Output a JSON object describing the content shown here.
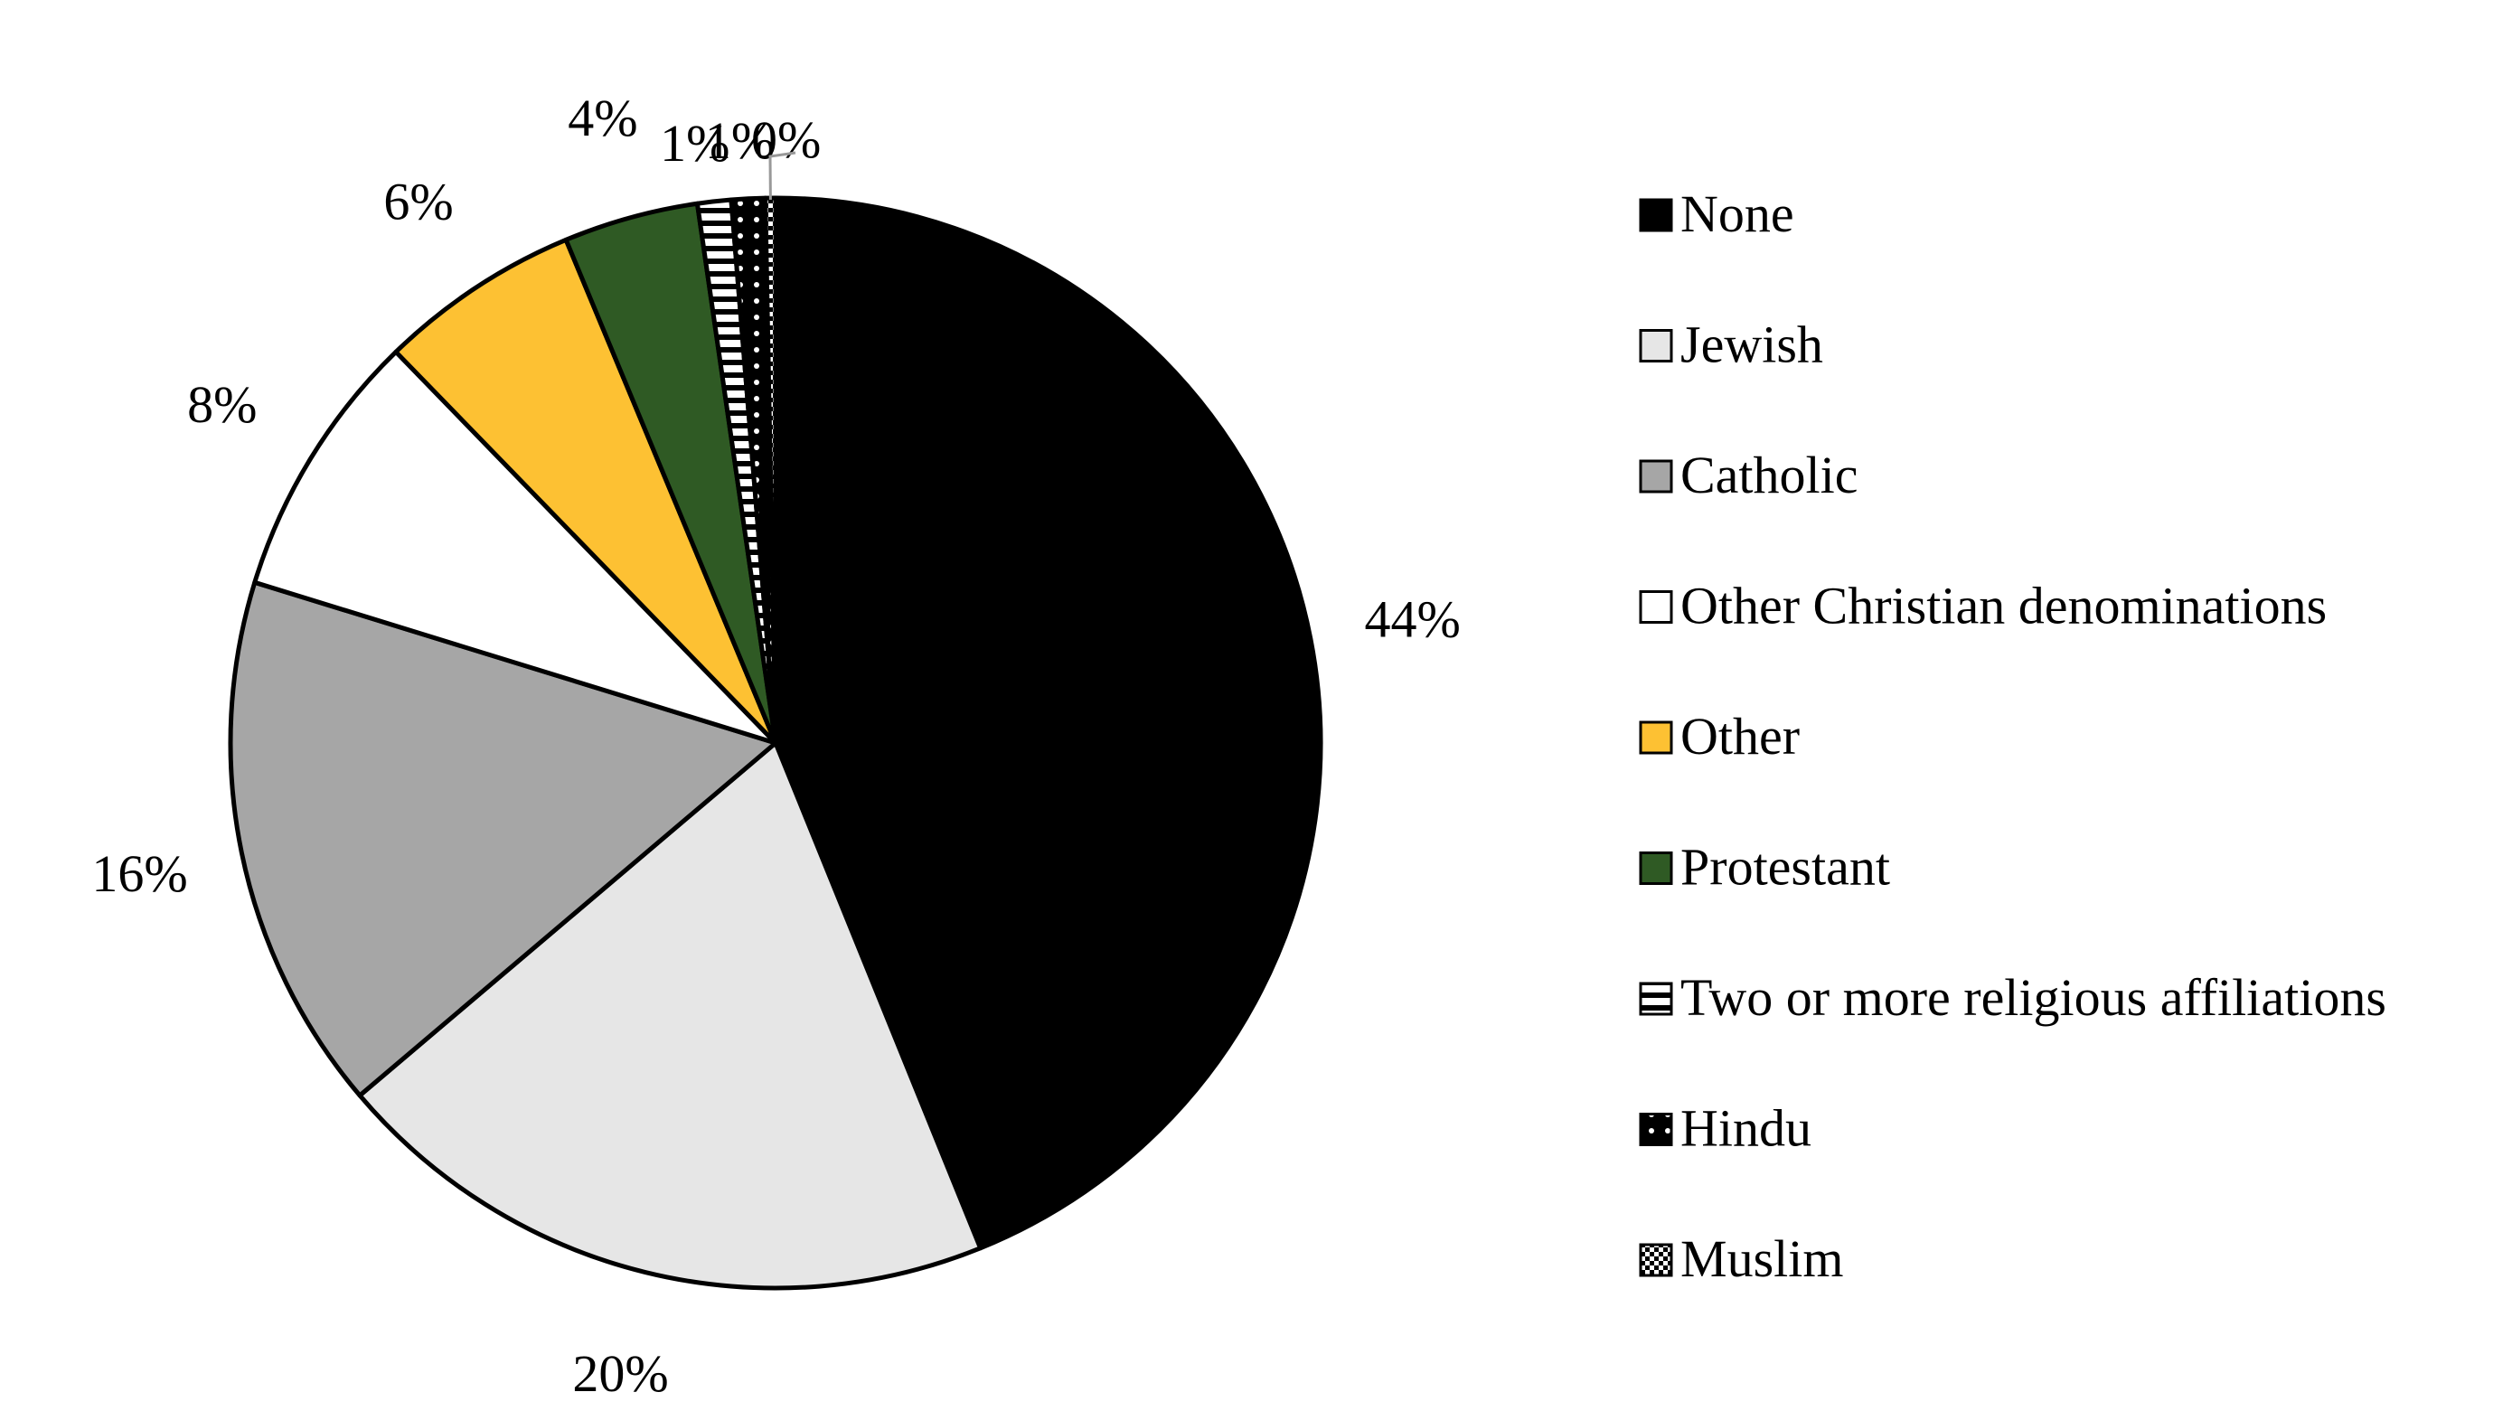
{
  "chart_data": {
    "type": "pie",
    "legend_position": "right",
    "slices": [
      {
        "name": "None",
        "value": 44,
        "label": "44%",
        "color": "#000000",
        "pattern": "solid"
      },
      {
        "name": "Jewish",
        "value": 20,
        "label": "20%",
        "color": "#e6e6e6",
        "pattern": "solid"
      },
      {
        "name": "Catholic",
        "value": 16,
        "label": "16%",
        "color": "#a6a6a6",
        "pattern": "solid"
      },
      {
        "name": "Other Christian denominations",
        "value": 8,
        "label": "8%",
        "color": "#ffffff",
        "pattern": "solid"
      },
      {
        "name": "Other",
        "value": 6,
        "label": "6%",
        "color": "#fdc133",
        "pattern": "solid"
      },
      {
        "name": "Protestant",
        "value": 4,
        "label": "4%",
        "color": "#2f5a24",
        "pattern": "solid"
      },
      {
        "name": "Two or more religious affiliations",
        "value": 1,
        "label": "1%",
        "color": "#ffffff",
        "pattern": "horizontal-stripes"
      },
      {
        "name": "Hindu",
        "value": 1,
        "label": "1%",
        "color": "#000000",
        "pattern": "white-dots"
      },
      {
        "name": "Muslim",
        "value": 0.3,
        "label": "0%",
        "color": "#ffffff",
        "pattern": "black-dots"
      }
    ]
  }
}
